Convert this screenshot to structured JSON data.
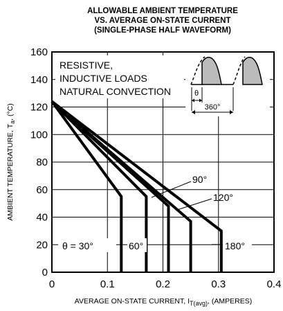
{
  "chart_data": {
    "type": "line",
    "title_lines": [
      "ALLOWABLE AMBIENT TEMPERATURE",
      "VS. AVERAGE ON-STATE CURRENT",
      "(SINGLE-PHASE HALF WAVEFORM)"
    ],
    "xlabel": "AVERAGE ON-STATE CURRENT, I",
    "xlabel_sub": "T(avg)",
    "xlabel_tail": ", (AMPERES)",
    "ylabel": "AMBIENT TEMPERATURE, T",
    "ylabel_sub": "a",
    "ylabel_tail": ", (°C)",
    "xlim": [
      0,
      0.4
    ],
    "ylim": [
      0,
      160
    ],
    "xticks": [
      "0",
      "0.1",
      "0.2",
      "0.3",
      "0.4"
    ],
    "yticks": [
      "0",
      "20",
      "40",
      "60",
      "80",
      "100",
      "120",
      "140",
      "160"
    ],
    "grid": true,
    "annotation_lines": [
      "RESISTIVE,",
      "INDUCTIVE LOADS",
      "NATURAL CONVECTION"
    ],
    "inset": {
      "theta_label": "θ",
      "period_label": "360°"
    },
    "series": [
      {
        "name": "θ = 30°",
        "points": [
          [
            0,
            124
          ],
          [
            0.125,
            55
          ],
          [
            0.125,
            0
          ]
        ]
      },
      {
        "name": "60°",
        "points": [
          [
            0,
            124
          ],
          [
            0.17,
            55
          ],
          [
            0.17,
            0
          ]
        ]
      },
      {
        "name": "90°",
        "points": [
          [
            0,
            124
          ],
          [
            0.21,
            48
          ],
          [
            0.21,
            0
          ]
        ]
      },
      {
        "name": "120°",
        "points": [
          [
            0,
            124
          ],
          [
            0.25,
            37
          ],
          [
            0.25,
            0
          ]
        ]
      },
      {
        "name": "180°",
        "points": [
          [
            0,
            124
          ],
          [
            0.305,
            30
          ],
          [
            0.305,
            0
          ]
        ]
      }
    ]
  }
}
